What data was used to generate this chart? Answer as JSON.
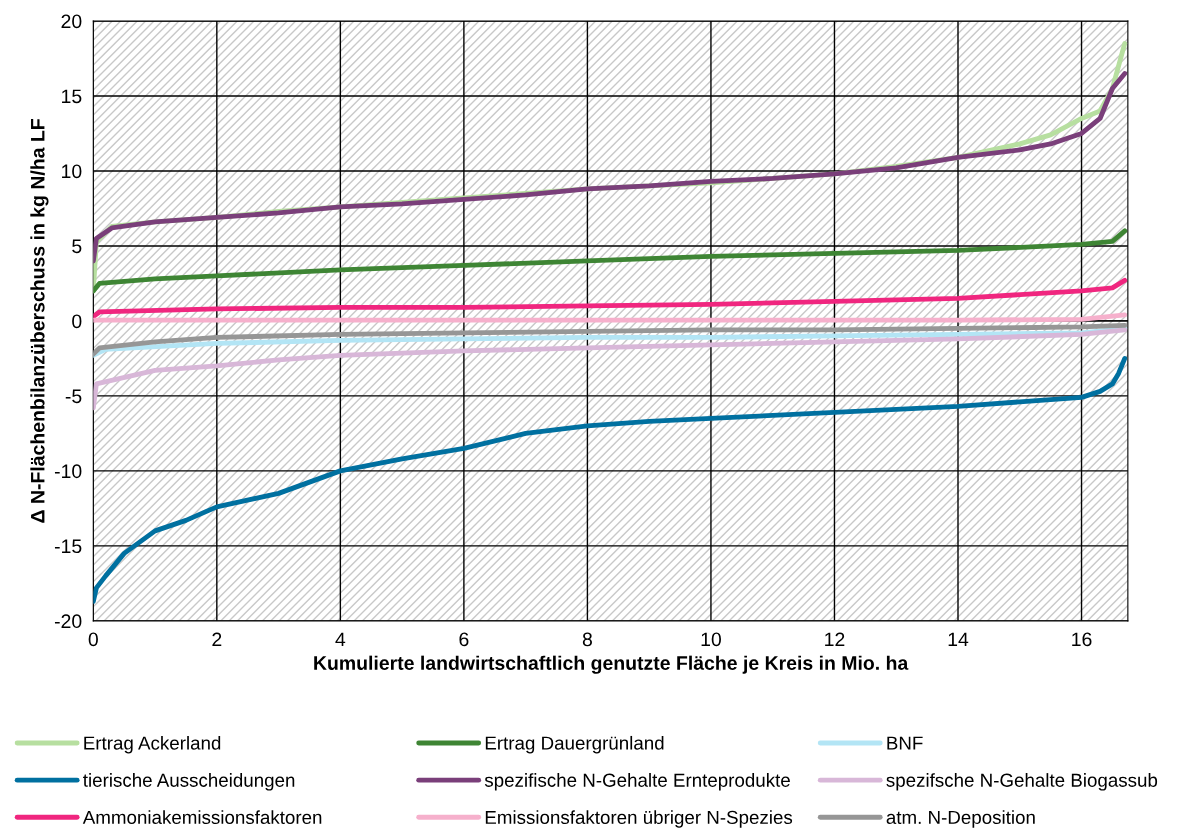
{
  "chart_data": {
    "type": "line",
    "xlabel": "Kumulierte landwirtschaftlich genutzte Fläche je Kreis in Mio. ha",
    "ylabel": "Δ N-Flächenbilanzüberschuss in kg N/ha LF",
    "xlim": [
      0,
      16.75
    ],
    "xticks": [
      0,
      2,
      4,
      6,
      8,
      10,
      12,
      14,
      16
    ],
    "ylim": [
      -20,
      20
    ],
    "yticks": [
      -20,
      -15,
      -10,
      -5,
      0,
      5,
      10,
      15,
      20
    ],
    "grid": true,
    "legend": "bottom",
    "marker": "none",
    "line_style": "solid",
    "series": [
      {
        "name": "Ertrag Ackerland",
        "color": "#b7dfa0",
        "x": [
          0,
          0.05,
          0.3,
          1,
          2,
          3,
          4,
          5,
          6,
          7,
          8,
          9,
          10,
          11,
          12,
          13,
          14,
          15,
          15.5,
          16,
          16.3,
          16.5,
          16.7
        ],
        "values": [
          2,
          5.3,
          6.3,
          6.6,
          6.9,
          7.3,
          7.6,
          7.9,
          8.2,
          8.5,
          8.8,
          9.0,
          9.2,
          9.5,
          9.8,
          10.3,
          10.9,
          11.8,
          12.4,
          13.5,
          14,
          15.5,
          18.5
        ]
      },
      {
        "name": "Ertrag Dauergrünland",
        "color": "#3e8534",
        "x": [
          0,
          0.1,
          1,
          2,
          4,
          6,
          8,
          10,
          12,
          14,
          16,
          16.5,
          16.7
        ],
        "values": [
          2,
          2.5,
          2.8,
          3.0,
          3.4,
          3.7,
          4.0,
          4.3,
          4.5,
          4.7,
          5.1,
          5.3,
          6
        ]
      },
      {
        "name": "BNF",
        "color": "#b3e5f5",
        "x": [
          0,
          0.2,
          2,
          4,
          6,
          8,
          10,
          12,
          14,
          16,
          16.7
        ],
        "values": [
          -2.3,
          -1.9,
          -1.5,
          -1.3,
          -1.2,
          -1.1,
          -1.1,
          -1.0,
          -0.9,
          -0.8,
          -0.5
        ]
      },
      {
        "name": "tierische Ausscheidungen",
        "color": "#0070a0",
        "x": [
          0,
          0.05,
          0.2,
          0.5,
          1,
          1.5,
          2,
          3,
          4,
          5,
          6,
          7,
          8,
          9,
          10,
          11,
          12,
          13,
          14,
          15,
          16,
          16.3,
          16.5,
          16.6,
          16.7
        ],
        "values": [
          -18.7,
          -17.8,
          -17,
          -15.5,
          -14,
          -13.3,
          -12.4,
          -11.5,
          -10,
          -9.2,
          -8.5,
          -7.5,
          -7.0,
          -6.7,
          -6.5,
          -6.3,
          -6.1,
          -5.9,
          -5.7,
          -5.4,
          -5.1,
          -4.7,
          -4.2,
          -3.5,
          -2.5
        ]
      },
      {
        "name": "spezifische N-Gehalte Ernteprodukte",
        "color": "#7a3f7a",
        "x": [
          0,
          0.05,
          0.3,
          1,
          2,
          3,
          4,
          5,
          6,
          7,
          8,
          9,
          10,
          11,
          12,
          13,
          14,
          15,
          15.5,
          16,
          16.3,
          16.5,
          16.7
        ],
        "values": [
          4,
          5.5,
          6.2,
          6.6,
          6.9,
          7.2,
          7.6,
          7.8,
          8.1,
          8.4,
          8.8,
          9.0,
          9.3,
          9.5,
          9.8,
          10.2,
          10.9,
          11.4,
          11.8,
          12.5,
          13.5,
          15.5,
          16.5
        ]
      },
      {
        "name": "spezifsche N-Gehalte Biogassub",
        "color": "#d8b7d8",
        "x": [
          0,
          0.05,
          1,
          2,
          3,
          4,
          6,
          8,
          10,
          12,
          14,
          16,
          16.7
        ],
        "values": [
          -5.8,
          -4.2,
          -3.3,
          -3.0,
          -2.6,
          -2.3,
          -2.0,
          -1.8,
          -1.6,
          -1.4,
          -1.2,
          -0.9,
          -0.6
        ]
      },
      {
        "name": "Ammoniakemissionsfaktoren",
        "color": "#f0267f",
        "x": [
          0,
          0.1,
          2,
          4,
          6,
          8,
          10,
          12,
          14,
          16,
          16.5,
          16.7
        ],
        "values": [
          0.3,
          0.6,
          0.8,
          0.9,
          0.9,
          1.0,
          1.1,
          1.3,
          1.5,
          2.0,
          2.2,
          2.7
        ]
      },
      {
        "name": "Emissionsfaktoren übriger N-Spezies",
        "color": "#f6b0cc",
        "x": [
          0,
          2,
          4,
          6,
          8,
          10,
          12,
          14,
          16,
          16.7
        ],
        "values": [
          0.05,
          0.05,
          0.05,
          0.05,
          0.05,
          0.05,
          0.05,
          0.05,
          0.1,
          0.4
        ]
      },
      {
        "name": "atm. N-Deposition",
        "color": "#969696",
        "x": [
          0,
          0.1,
          1,
          2,
          4,
          6,
          8,
          10,
          12,
          14,
          16,
          16.7
        ],
        "values": [
          -2.2,
          -1.8,
          -1.4,
          -1.1,
          -0.9,
          -0.8,
          -0.7,
          -0.6,
          -0.6,
          -0.5,
          -0.4,
          -0.3
        ]
      }
    ]
  }
}
